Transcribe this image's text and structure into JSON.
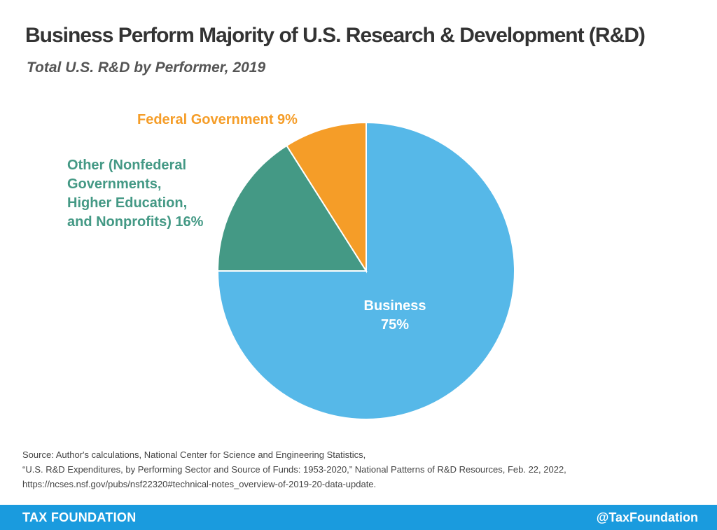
{
  "header": {
    "title": "Business Perform Majority of U.S. Research & Development (R&D)",
    "subtitle": "Total U.S. R&D by Performer, 2019"
  },
  "chart_data": {
    "type": "pie",
    "title": "Business Perform Majority of U.S. Research & Development (R&D)",
    "subtitle": "Total U.S. R&D by Performer, 2019",
    "slices": [
      {
        "name": "Business",
        "value": 75,
        "label_lines": [
          "Business",
          "75%"
        ],
        "color": "#56b8e8",
        "label_color": "#ffffff"
      },
      {
        "name": "Other (Nonfederal Governments, Higher Education, and Nonprofits)",
        "value": 16,
        "label_lines": [
          "Other (Nonfederal",
          "Governments,",
          "Higher Education,",
          "and Nonprofits) 16%"
        ],
        "color": "#449985",
        "label_color": "#449985"
      },
      {
        "name": "Federal Government",
        "value": 9,
        "label_lines": [
          "Federal Government 9%"
        ],
        "color": "#f59d28",
        "label_color": "#f59d28"
      }
    ]
  },
  "source": {
    "lines": [
      "Source: Author's calculations, National Center for Science and Engineering Statistics,",
      "“U.S. R&D Expenditures, by Performing Sector and Source of Funds: 1953-2020,” National Patterns of R&D Resources, Feb. 22, 2022,",
      "https://ncses.nsf.gov/pubs/nsf22320#technical-notes_overview-of-2019-20-data-update."
    ]
  },
  "footer": {
    "brand": "TAX FOUNDATION",
    "handle": "@TaxFoundation"
  },
  "colors": {
    "footer_bar": "#1a9bde",
    "title_text": "#333333"
  }
}
